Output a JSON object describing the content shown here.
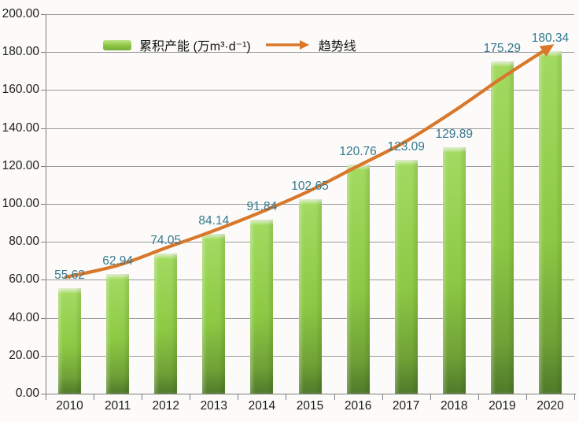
{
  "chart_data": {
    "type": "bar",
    "title": "",
    "xlabel": "",
    "ylabel": "",
    "categories": [
      "2010",
      "2011",
      "2012",
      "2013",
      "2014",
      "2015",
      "2016",
      "2017",
      "2018",
      "2019",
      "2020"
    ],
    "series": [
      {
        "name": "累积产能 (万m³·d⁻¹)",
        "values": [
          55.62,
          62.94,
          74.05,
          84.14,
          91.84,
          102.65,
          120.76,
          123.09,
          129.89,
          175.29,
          180.34
        ]
      }
    ],
    "trend": {
      "label": "趋势线",
      "values": [
        61.4,
        67.6,
        76.8,
        85.9,
        95.9,
        107.0,
        120.0,
        133.0,
        149.0,
        166.5,
        181.0
      ]
    },
    "yticks": [
      "0.00",
      "20.00",
      "40.00",
      "60.00",
      "80.00",
      "100.00",
      "120.00",
      "140.00",
      "160.00",
      "180.00",
      "200.00"
    ],
    "ytick_step": 20,
    "ylim": [
      0,
      200
    ],
    "grid": true,
    "legend_position": "top-left",
    "colors": {
      "bar_light": "#9ed85c",
      "bar_dark": "#4f7a29",
      "trend": "#d9772b",
      "value_label": "#35798e",
      "gridline": "#9b9b9b",
      "axis": "#7f7f7f"
    }
  }
}
